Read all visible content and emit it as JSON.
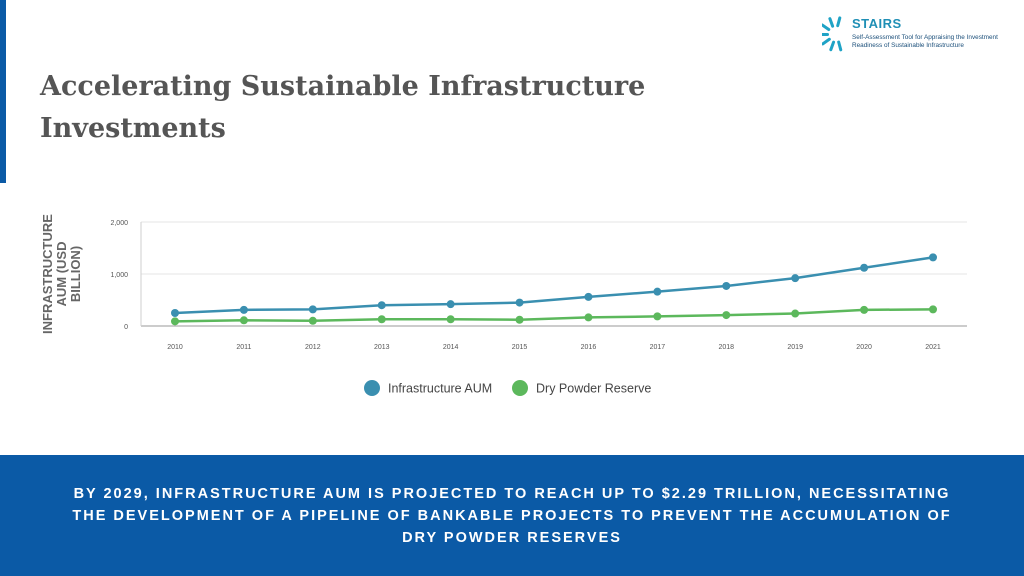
{
  "logo": {
    "name": "STAIRS",
    "tagline": "Self-Assessment Tool for Appraising the Investment Readiness of Sustainable Infrastructure"
  },
  "title": "Accelerating Sustainable Infrastructure Investments",
  "chart_data": {
    "type": "line",
    "title": "",
    "xlabel": "",
    "ylabel": "INFRASTRUCTURE AUM (USD BILLION)",
    "categories": [
      "2010",
      "2011",
      "2012",
      "2013",
      "2014",
      "2015",
      "2016",
      "2017",
      "2018",
      "2019",
      "2020",
      "2021"
    ],
    "ylim": [
      0,
      2000
    ],
    "yticks": [
      0,
      1000,
      2000
    ],
    "ytick_labels": [
      "0",
      "1,000",
      "2,000"
    ],
    "grid": true,
    "legend_position": "bottom",
    "series": [
      {
        "name": "Infrastructure AUM",
        "color": "#3a8fb0",
        "values": [
          250,
          310,
          320,
          400,
          420,
          450,
          560,
          660,
          770,
          920,
          1120,
          1320
        ]
      },
      {
        "name": "Dry Powder Reserve",
        "color": "#5cb85c",
        "values": [
          90,
          110,
          100,
          130,
          130,
          120,
          165,
          185,
          210,
          240,
          310,
          320
        ]
      }
    ]
  },
  "footer": {
    "text": "BY 2029, INFRASTRUCTURE AUM IS PROJECTED TO REACH UP TO $2.29 TRILLION, NECESSITATING THE DEVELOPMENT OF A PIPELINE OF BANKABLE PROJECTS TO PREVENT THE ACCUMULATION OF DRY POWDER RESERVES"
  },
  "colors": {
    "accent": "#0b5aa6",
    "title": "#555555",
    "grid": "#e6e6e6"
  }
}
